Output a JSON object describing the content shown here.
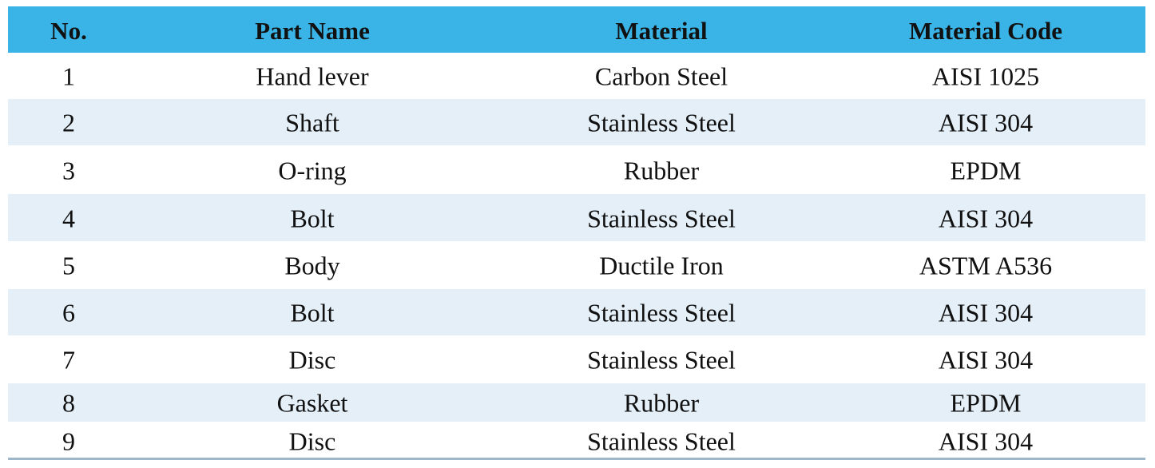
{
  "table": {
    "header": [
      "No.",
      "Part Name",
      "Material",
      "Material Code"
    ],
    "rows": [
      [
        "1",
        "Hand lever",
        "Carbon Steel",
        "AISI 1025"
      ],
      [
        "2",
        "Shaft",
        "Stainless Steel",
        "AISI 304"
      ],
      [
        "3",
        "O-ring",
        "Rubber",
        "EPDM"
      ],
      [
        "4",
        "Bolt",
        "Stainless Steel",
        "AISI 304"
      ],
      [
        "5",
        "Body",
        "Ductile Iron",
        "ASTM A536"
      ],
      [
        "6",
        "Bolt",
        "Stainless Steel",
        "AISI 304"
      ],
      [
        "7",
        "Disc",
        "Stainless Steel",
        "AISI 304"
      ],
      [
        "8",
        "Gasket",
        "Rubber",
        "EPDM"
      ],
      [
        "9",
        "Disc",
        "Stainless Steel",
        "AISI 304"
      ]
    ]
  }
}
